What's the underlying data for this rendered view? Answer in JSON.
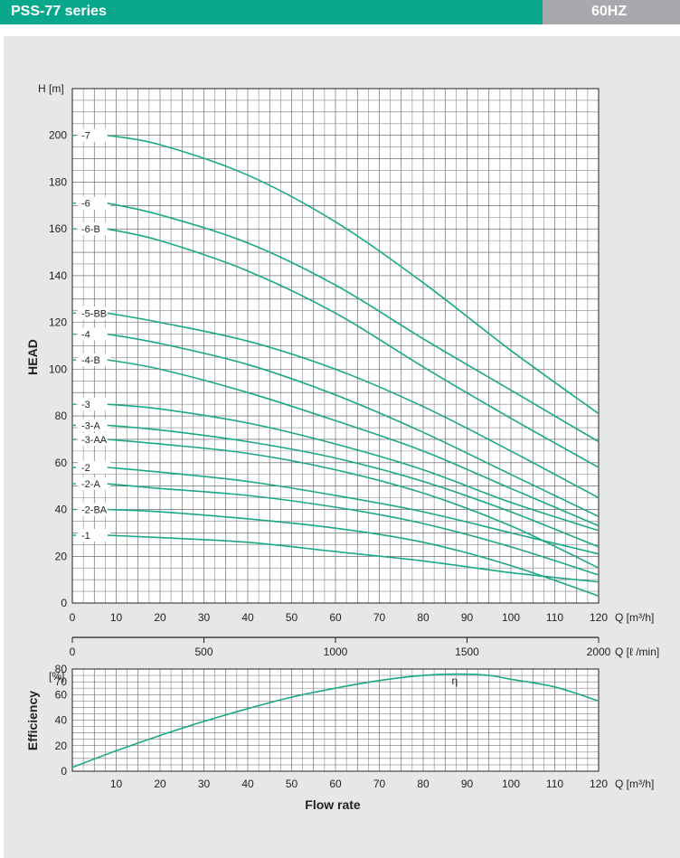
{
  "header": {
    "series_title": "PSS-77 series",
    "frequency": "60HZ"
  },
  "colors": {
    "header_green": "#0aa88a",
    "header_gray": "#a7a9ac",
    "curve": "#1aa886",
    "panel": "#e6e7e8"
  },
  "chart_data": [
    {
      "type": "line",
      "ylabel": "HEAD",
      "yunit": "H [m]",
      "xunit": "Q [m³/h]",
      "x2unit": "Q [ℓ /min]",
      "xlim": [
        0,
        120
      ],
      "ylim": [
        0,
        220
      ],
      "x_ticks": [
        "0",
        "10",
        "20",
        "30",
        "40",
        "50",
        "60",
        "70",
        "80",
        "90",
        "100",
        "110",
        "120"
      ],
      "y_ticks": [
        "0",
        "20",
        "40",
        "60",
        "80",
        "100",
        "120",
        "140",
        "160",
        "180",
        "200"
      ],
      "x2_ticks": [
        "0",
        "500",
        "1000",
        "1500",
        "2000"
      ],
      "grid": true,
      "x": [
        8,
        20,
        40,
        60,
        80,
        100,
        120
      ],
      "series": [
        {
          "name": "7",
          "values": [
            200,
            196,
            183,
            163,
            137,
            108,
            81
          ]
        },
        {
          "name": "6",
          "values": [
            171,
            166,
            154,
            136,
            113,
            91,
            69
          ]
        },
        {
          "name": "6-B",
          "values": [
            160,
            155,
            142,
            124,
            101,
            79,
            58
          ]
        },
        {
          "name": "5-BB",
          "values": [
            124,
            120,
            112,
            100,
            84,
            65,
            45
          ]
        },
        {
          "name": "4",
          "values": [
            115,
            111,
            102,
            89,
            73,
            55,
            37
          ]
        },
        {
          "name": "4-B",
          "values": [
            104,
            100,
            90,
            78,
            65,
            49,
            33
          ]
        },
        {
          "name": "3",
          "values": [
            85,
            83,
            77,
            68,
            57,
            43,
            31
          ]
        },
        {
          "name": "3-A",
          "values": [
            76,
            74,
            69,
            62,
            52,
            39,
            24
          ]
        },
        {
          "name": "3-AA",
          "values": [
            70,
            68,
            64,
            57,
            47,
            33,
            15
          ]
        },
        {
          "name": "2",
          "values": [
            58,
            56,
            52,
            46,
            39,
            30,
            21
          ]
        },
        {
          "name": "2-A",
          "values": [
            51,
            49,
            46,
            41,
            34,
            24,
            12
          ]
        },
        {
          "name": "2-BA",
          "values": [
            40,
            39,
            36,
            32,
            26,
            16,
            3
          ]
        },
        {
          "name": "1",
          "values": [
            29,
            28,
            26,
            22,
            18,
            13,
            9
          ]
        }
      ]
    },
    {
      "type": "line",
      "ylabel": "Efficiency",
      "yunit": "[%]",
      "xlabel": "Flow rate",
      "xunit": "Q [m³/h]",
      "xlim": [
        0,
        120
      ],
      "ylim": [
        0,
        80
      ],
      "x_ticks": [
        "10",
        "20",
        "30",
        "40",
        "50",
        "60",
        "70",
        "80",
        "90",
        "100",
        "110",
        "120"
      ],
      "y_ticks": [
        "0",
        "20",
        "40",
        "60",
        "70",
        "80"
      ],
      "grid": true,
      "annotation": "η",
      "series": [
        {
          "name": "",
          "x": [
            0,
            10,
            20,
            30,
            40,
            50,
            60,
            70,
            80,
            88,
            95,
            100,
            110,
            120
          ],
          "values": [
            3,
            16,
            28,
            39,
            49,
            58,
            65,
            71,
            75,
            76,
            75,
            72,
            66,
            55
          ]
        }
      ]
    }
  ]
}
